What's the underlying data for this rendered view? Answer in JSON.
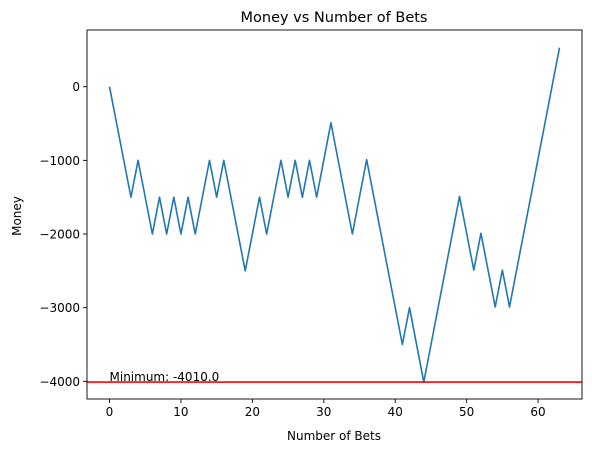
{
  "chart_data": {
    "type": "line",
    "title": "Money vs Number of Bets",
    "xlabel": "Number of Bets",
    "ylabel": "Money",
    "xlim": [
      -3.15,
      66.15
    ],
    "ylim": [
      -4240,
      770
    ],
    "xticks": [
      0,
      10,
      20,
      30,
      40,
      50,
      60
    ],
    "yticks": [
      -4000,
      -3000,
      -2000,
      -1000,
      0
    ],
    "xtick_labels": [
      "0",
      "10",
      "20",
      "30",
      "40",
      "50",
      "60"
    ],
    "ytick_labels": [
      "−4000",
      "−3000",
      "−2000",
      "−1000",
      "0"
    ],
    "grid": false,
    "series": [
      {
        "color": "#1f77b4",
        "x": [
          0,
          3,
          4,
          6,
          7,
          8,
          9,
          10,
          11,
          12,
          14,
          15,
          16,
          19,
          21,
          22,
          24,
          25,
          26,
          27,
          28,
          29,
          31,
          34,
          36,
          41,
          42,
          44,
          49,
          51,
          52,
          54,
          55,
          56,
          63
        ],
        "y": [
          0,
          -1500,
          -1000,
          -2000,
          -1500,
          -2000,
          -1500,
          -2000,
          -1500,
          -2000,
          -1000,
          -1500,
          -1000,
          -2500,
          -1500,
          -2000,
          -1000,
          -1500,
          -1000,
          -1500,
          -1000,
          -1500,
          -490,
          -2000,
          -990,
          -3500,
          -3000,
          -4010,
          -1490,
          -2490,
          -1990,
          -2990,
          -2490,
          -2990,
          530
        ]
      }
    ],
    "hline": {
      "y": -4010,
      "color": "#ff0000"
    },
    "annotation": {
      "text": "Minimum: -4010.0",
      "x": 0,
      "y": -4010
    }
  }
}
